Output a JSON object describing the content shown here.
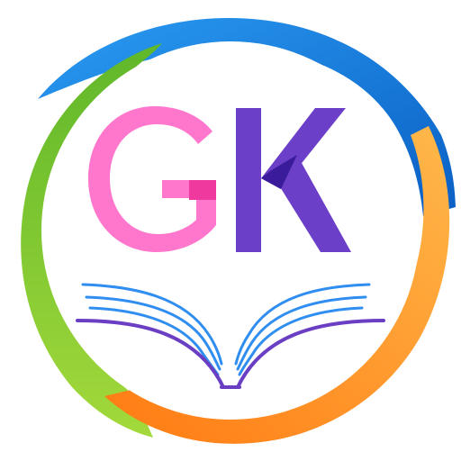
{
  "logo": {
    "letters": [
      "G",
      "K"
    ],
    "colors": {
      "g_main": "#FF77CC",
      "g_bar": "#F0399E",
      "k_main": "#6B3FC8",
      "k_overlap": "#3A1B9A",
      "ring_blue": "#1E8FE8",
      "ring_blue_dark": "#0A5FC4",
      "ring_green": "#6CC02A",
      "ring_green_light": "#A3D93B",
      "ring_orange": "#FF8A1C",
      "ring_yellow": "#FFB84A",
      "book_lines_blue": "#2F8EF0",
      "book_base_purple": "#6A3FC4",
      "background": "#FFFFFF"
    },
    "icons": [
      "open-book-icon"
    ]
  }
}
